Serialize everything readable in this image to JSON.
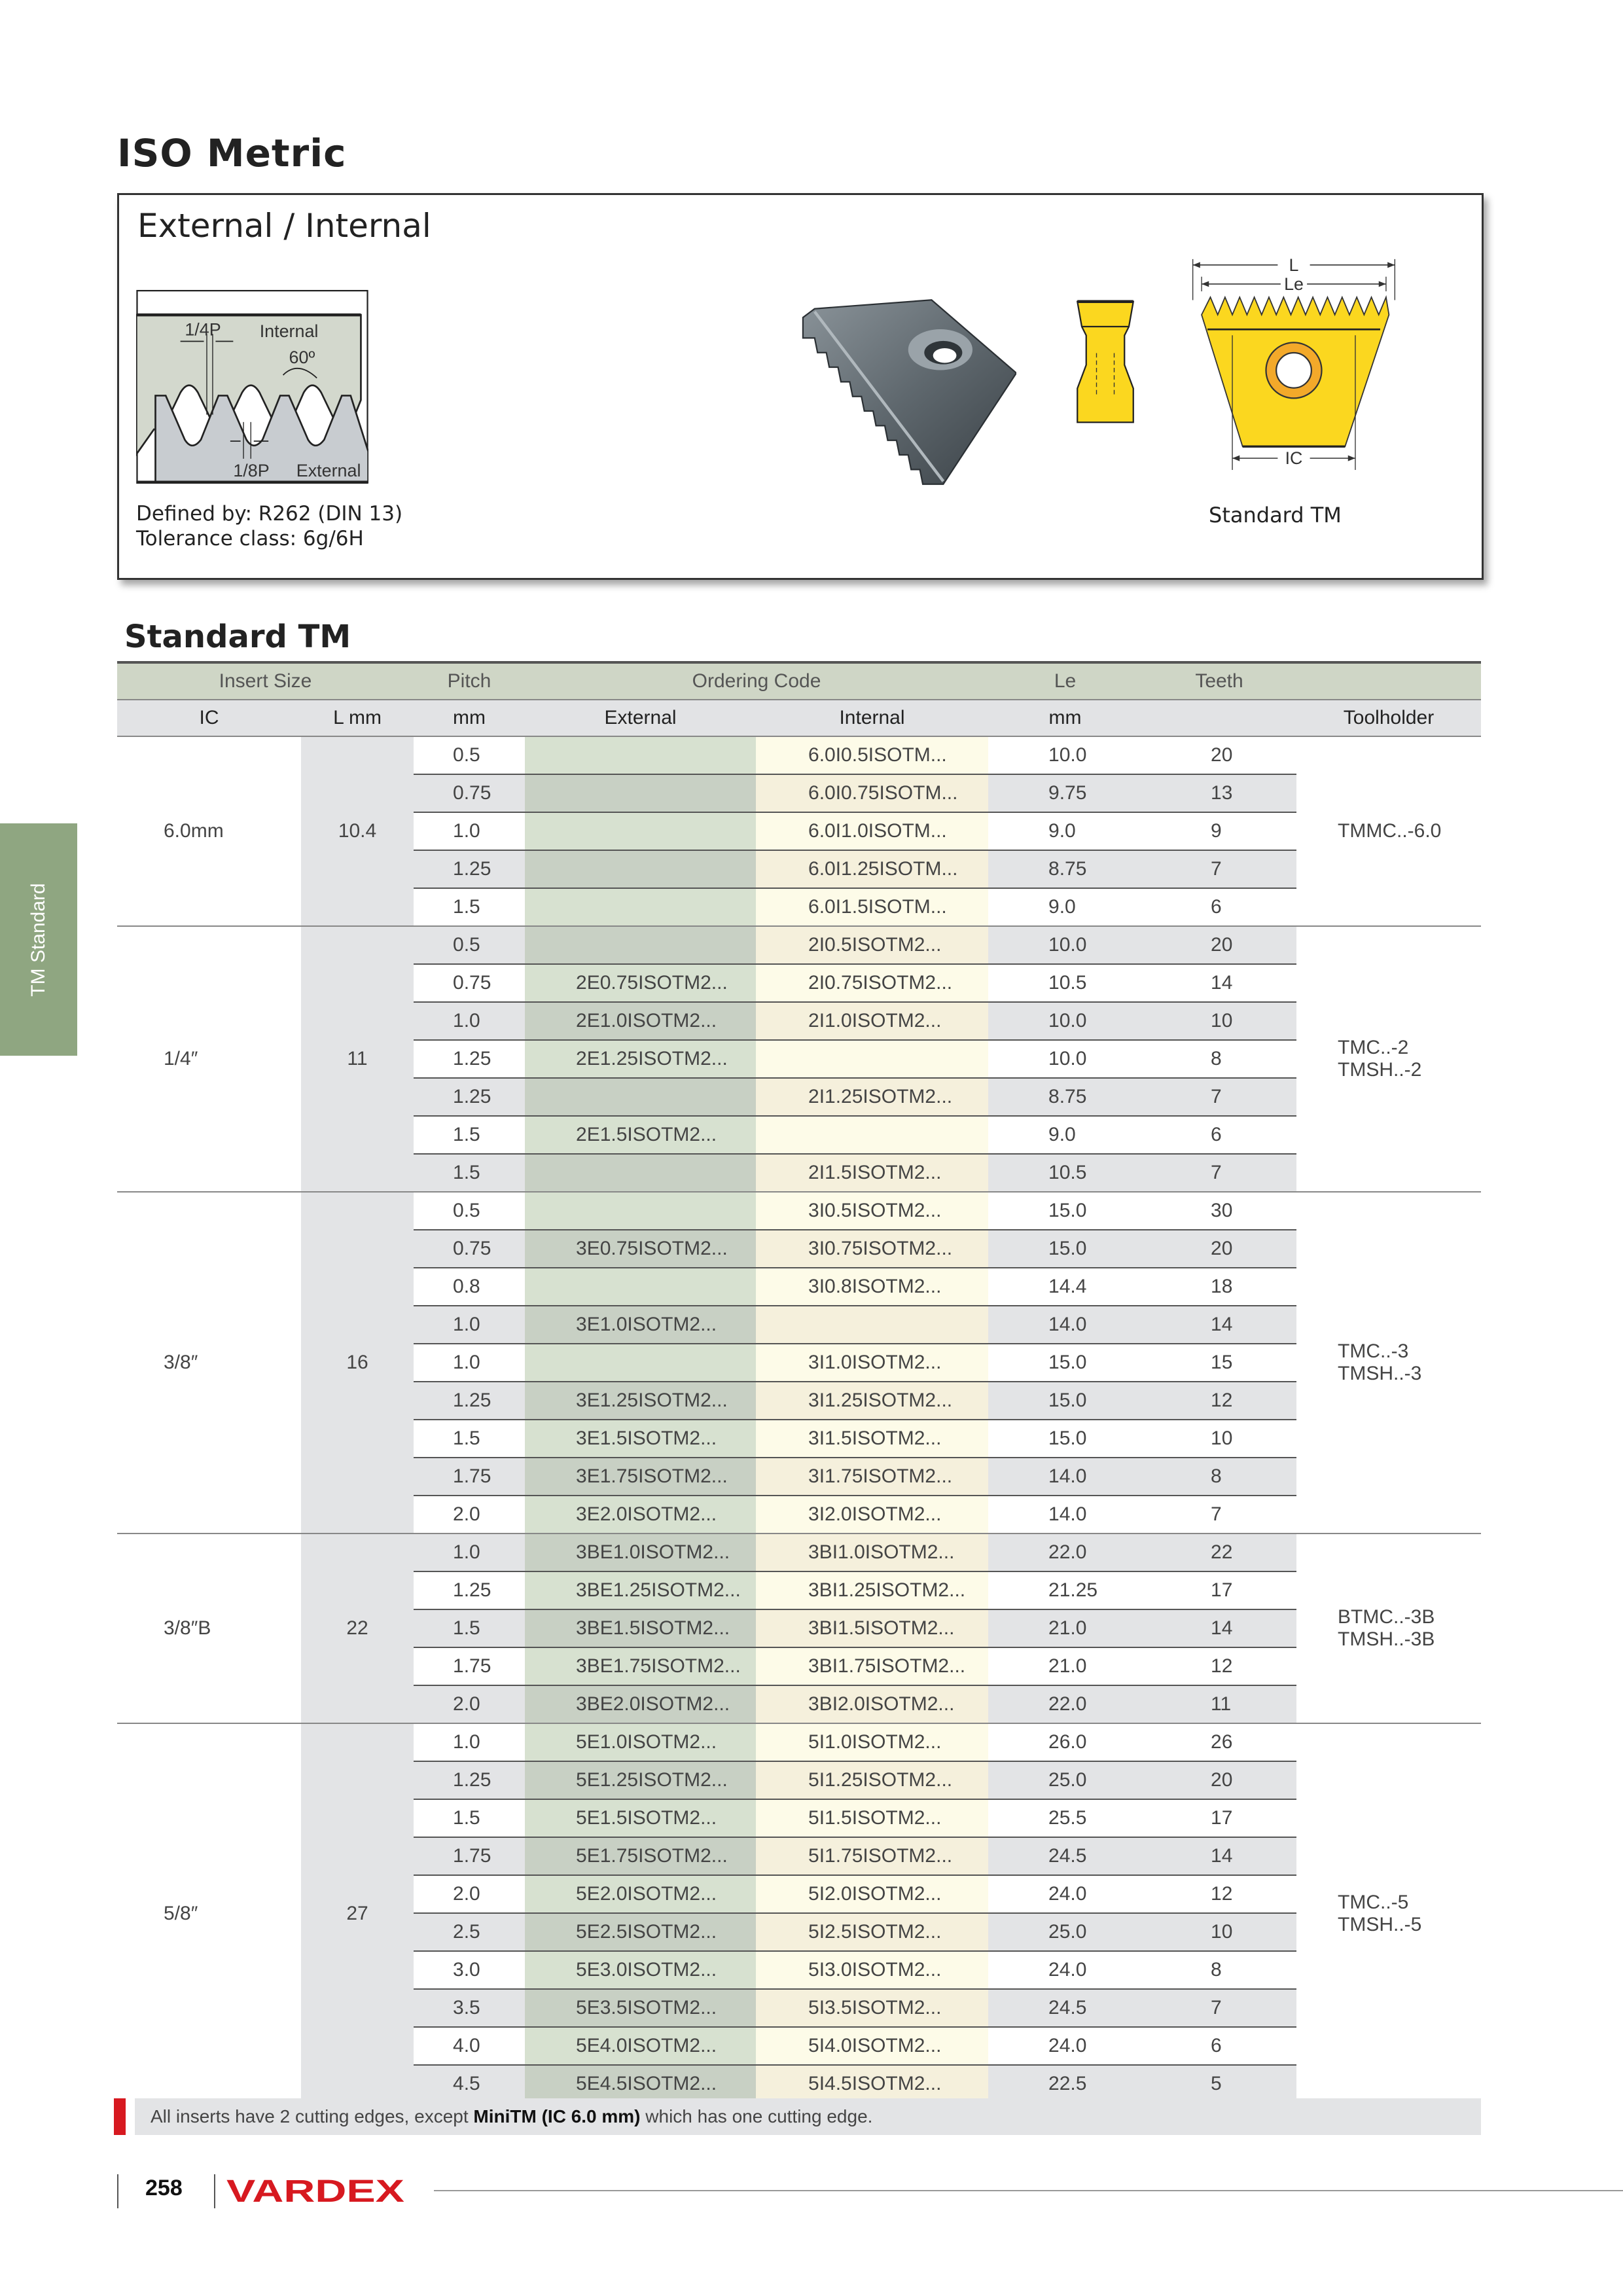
{
  "page": {
    "title": "ISO Metric",
    "side_tab": "TM Standard",
    "page_number": "258",
    "brand": "VARDEX"
  },
  "info_box": {
    "title": "External / Internal",
    "defined_by": "Defined by: R262 (DIN 13)",
    "tolerance": "Tolerance class: 6g/6H",
    "diagram_labels": {
      "quarter_p": "1/4P",
      "internal": "Internal",
      "angle": "60º",
      "eighth_p": "1/8P",
      "external": "External"
    },
    "dimension_labels": {
      "L": "L",
      "Le": "Le",
      "IC": "IC"
    },
    "insert_caption": "Standard TM"
  },
  "section_title": "Standard TM",
  "table": {
    "header_top": {
      "insert_size": "Insert Size",
      "pitch": "Pitch",
      "ordering_code": "Ordering Code",
      "le": "Le",
      "teeth": "Teeth"
    },
    "header_sub": {
      "ic": "IC",
      "l": "L mm",
      "pitch": "mm",
      "external": "External",
      "internal": "Internal",
      "le": "mm",
      "toolholder": "Toolholder"
    },
    "groups": [
      {
        "ic": "6.0mm",
        "l": "10.4",
        "toolholder": [
          "TMMC..-6.0"
        ],
        "rows": [
          {
            "pitch": "0.5",
            "external": "",
            "internal": "6.0I0.5ISOTM...",
            "le": "10.0",
            "teeth": "20"
          },
          {
            "pitch": "0.75",
            "external": "",
            "internal": "6.0I0.75ISOTM...",
            "le": "9.75",
            "teeth": "13"
          },
          {
            "pitch": "1.0",
            "external": "",
            "internal": "6.0I1.0ISOTM...",
            "le": "9.0",
            "teeth": "9"
          },
          {
            "pitch": "1.25",
            "external": "",
            "internal": "6.0I1.25ISOTM...",
            "le": "8.75",
            "teeth": "7"
          },
          {
            "pitch": "1.5",
            "external": "",
            "internal": "6.0I1.5ISOTM...",
            "le": "9.0",
            "teeth": "6"
          }
        ]
      },
      {
        "ic": "1/4″",
        "l": "11",
        "toolholder": [
          "TMC..-2",
          "TMSH..-2"
        ],
        "rows": [
          {
            "pitch": "0.5",
            "external": "",
            "internal": "2I0.5ISOTM2...",
            "le": "10.0",
            "teeth": "20"
          },
          {
            "pitch": "0.75",
            "external": "2E0.75ISOTM2...",
            "internal": "2I0.75ISOTM2...",
            "le": "10.5",
            "teeth": "14"
          },
          {
            "pitch": "1.0",
            "external": "2E1.0ISOTM2...",
            "internal": "2I1.0ISOTM2...",
            "le": "10.0",
            "teeth": "10"
          },
          {
            "pitch": "1.25",
            "external": "2E1.25ISOTM2...",
            "internal": "",
            "le": "10.0",
            "teeth": "8"
          },
          {
            "pitch": "1.25",
            "external": "",
            "internal": "2I1.25ISOTM2...",
            "le": "8.75",
            "teeth": "7"
          },
          {
            "pitch": "1.5",
            "external": "2E1.5ISOTM2...",
            "internal": "",
            "le": "9.0",
            "teeth": "6"
          },
          {
            "pitch": "1.5",
            "external": "",
            "internal": "2I1.5ISOTM2...",
            "le": "10.5",
            "teeth": "7"
          }
        ]
      },
      {
        "ic": "3/8″",
        "l": "16",
        "toolholder": [
          "TMC..-3",
          "TMSH..-3"
        ],
        "rows": [
          {
            "pitch": "0.5",
            "external": "",
            "internal": "3I0.5ISOTM2...",
            "le": "15.0",
            "teeth": "30"
          },
          {
            "pitch": "0.75",
            "external": "3E0.75ISOTM2...",
            "internal": "3I0.75ISOTM2...",
            "le": "15.0",
            "teeth": "20"
          },
          {
            "pitch": "0.8",
            "external": "",
            "internal": "3I0.8ISOTM2...",
            "le": "14.4",
            "teeth": "18"
          },
          {
            "pitch": "1.0",
            "external": "3E1.0ISOTM2...",
            "internal": "",
            "le": "14.0",
            "teeth": "14"
          },
          {
            "pitch": "1.0",
            "external": "",
            "internal": "3I1.0ISOTM2...",
            "le": "15.0",
            "teeth": "15"
          },
          {
            "pitch": "1.25",
            "external": "3E1.25ISOTM2...",
            "internal": "3I1.25ISOTM2...",
            "le": "15.0",
            "teeth": "12"
          },
          {
            "pitch": "1.5",
            "external": "3E1.5ISOTM2...",
            "internal": "3I1.5ISOTM2...",
            "le": "15.0",
            "teeth": "10"
          },
          {
            "pitch": "1.75",
            "external": "3E1.75ISOTM2...",
            "internal": "3I1.75ISOTM2...",
            "le": "14.0",
            "teeth": "8"
          },
          {
            "pitch": "2.0",
            "external": "3E2.0ISOTM2...",
            "internal": "3I2.0ISOTM2...",
            "le": "14.0",
            "teeth": "7"
          }
        ]
      },
      {
        "ic": "3/8″B",
        "l": "22",
        "toolholder": [
          "BTMC..-3B",
          "TMSH..-3B"
        ],
        "rows": [
          {
            "pitch": "1.0",
            "external": "3BE1.0ISOTM2...",
            "internal": "3BI1.0ISOTM2...",
            "le": "22.0",
            "teeth": "22"
          },
          {
            "pitch": "1.25",
            "external": "3BE1.25ISOTM2...",
            "internal": "3BI1.25ISOTM2...",
            "le": "21.25",
            "teeth": "17"
          },
          {
            "pitch": "1.5",
            "external": "3BE1.5ISOTM2...",
            "internal": "3BI1.5ISOTM2...",
            "le": "21.0",
            "teeth": "14"
          },
          {
            "pitch": "1.75",
            "external": "3BE1.75ISOTM2...",
            "internal": "3BI1.75ISOTM2...",
            "le": "21.0",
            "teeth": "12"
          },
          {
            "pitch": "2.0",
            "external": "3BE2.0ISOTM2...",
            "internal": "3BI2.0ISOTM2...",
            "le": "22.0",
            "teeth": "11"
          }
        ]
      },
      {
        "ic": "5/8″",
        "l": "27",
        "toolholder": [
          "TMC..-5",
          "TMSH..-5"
        ],
        "rows": [
          {
            "pitch": "1.0",
            "external": "5E1.0ISOTM2...",
            "internal": "5I1.0ISOTM2...",
            "le": "26.0",
            "teeth": "26"
          },
          {
            "pitch": "1.25",
            "external": "5E1.25ISOTM2...",
            "internal": "5I1.25ISOTM2...",
            "le": "25.0",
            "teeth": "20"
          },
          {
            "pitch": "1.5",
            "external": "5E1.5ISOTM2...",
            "internal": "5I1.5ISOTM2...",
            "le": "25.5",
            "teeth": "17"
          },
          {
            "pitch": "1.75",
            "external": "5E1.75ISOTM2...",
            "internal": "5I1.75ISOTM2...",
            "le": "24.5",
            "teeth": "14"
          },
          {
            "pitch": "2.0",
            "external": "5E2.0ISOTM2...",
            "internal": "5I2.0ISOTM2...",
            "le": "24.0",
            "teeth": "12"
          },
          {
            "pitch": "2.5",
            "external": "5E2.5ISOTM2...",
            "internal": "5I2.5ISOTM2...",
            "le": "25.0",
            "teeth": "10"
          },
          {
            "pitch": "3.0",
            "external": "5E3.0ISOTM2...",
            "internal": "5I3.0ISOTM2...",
            "le": "24.0",
            "teeth": "8"
          },
          {
            "pitch": "3.5",
            "external": "5E3.5ISOTM2...",
            "internal": "5I3.5ISOTM2...",
            "le": "24.5",
            "teeth": "7"
          },
          {
            "pitch": "4.0",
            "external": "5E4.0ISOTM2...",
            "internal": "5I4.0ISOTM2...",
            "le": "24.0",
            "teeth": "6"
          },
          {
            "pitch": "4.5",
            "external": "5E4.5ISOTM2...",
            "internal": "5I4.5ISOTM2...",
            "le": "22.5",
            "teeth": "5"
          }
        ]
      }
    ]
  },
  "note": {
    "prefix": "All inserts have 2 cutting edges, except ",
    "bold": "MiniTM (IC 6.0 mm)",
    "suffix": " which has one cutting edge."
  },
  "colors": {
    "brand_red": "#d71920",
    "side_tab_green": "#8fa681",
    "insert_yellow": "#fbd71f",
    "header_green": "#cfd6c6"
  }
}
